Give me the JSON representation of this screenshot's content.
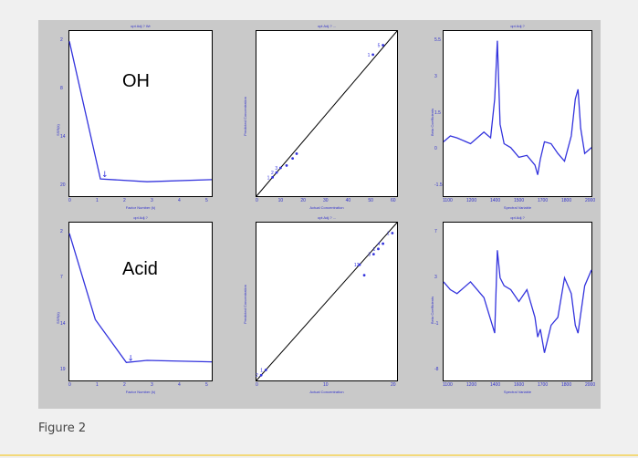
{
  "figure": {
    "caption": "Figure 2",
    "colors": {
      "frame": "#c9c9c9",
      "curve": "#3333dd",
      "axis_text": "#3333cc",
      "fit_line": "#000000"
    }
  },
  "chart_data": [
    {
      "id": "oh-ssr",
      "type": "line",
      "row_label": "OH",
      "title": "opt Adj.? Wr",
      "xlabel": "Factor Number (k)",
      "ylabel": "SSR(k)",
      "xlim": [
        0,
        5.5
      ],
      "ylim": [
        0,
        24
      ],
      "x_ticks": [
        "0",
        "1",
        "2",
        "3",
        "4",
        "5"
      ],
      "y_ticks": [
        "2",
        "8",
        "14",
        "20"
      ],
      "series": [
        {
          "x": [
            0,
            1.2,
            3,
            5.5
          ],
          "y": [
            22.5,
            2.5,
            2.1,
            2.4
          ]
        }
      ],
      "marker": {
        "x": 1.2,
        "label": "↓"
      }
    },
    {
      "id": "oh-fit",
      "type": "scatter",
      "title": "opt Adj.? ...",
      "xlabel": "Actual Concentration",
      "ylabel": "Predicted Concentration",
      "xlim": [
        0,
        70
      ],
      "ylim": [
        0,
        70
      ],
      "x_ticks": [
        "0",
        "10",
        "20",
        "30",
        "40",
        "50",
        "60"
      ],
      "y_ticks": [],
      "points": [
        [
          8,
          8
        ],
        [
          10,
          10
        ],
        [
          12,
          12
        ],
        [
          15,
          13
        ],
        [
          18,
          16
        ],
        [
          20,
          18
        ],
        [
          58,
          60
        ],
        [
          63,
          64
        ]
      ],
      "point_labels": [
        "1",
        "2",
        "3",
        "",
        "",
        "",
        "1",
        "5"
      ],
      "fit_line": [
        [
          0,
          0
        ],
        [
          70,
          70
        ]
      ]
    },
    {
      "id": "oh-coef",
      "type": "line",
      "title": "opt Adj.?",
      "xlabel": "Spectral Variable",
      "ylabel": "Beta Coefficients",
      "xlim": [
        1000,
        2100
      ],
      "ylim": [
        -2.5,
        6
      ],
      "x_ticks": [
        "1100",
        "1200",
        "1400",
        "1500",
        "1700",
        "1800",
        "2000"
      ],
      "y_ticks": [
        "5.5",
        "3",
        "1.5",
        "0",
        "-1.5"
      ],
      "series": [
        {
          "x": [
            1000,
            1050,
            1100,
            1200,
            1300,
            1350,
            1380,
            1400,
            1420,
            1450,
            1500,
            1560,
            1620,
            1680,
            1700,
            1720,
            1750,
            1800,
            1850,
            1900,
            1950,
            1980,
            2000,
            2020,
            2050,
            2100
          ],
          "y": [
            0.3,
            0.6,
            0.5,
            0.2,
            0.8,
            0.5,
            2.5,
            5.5,
            1.2,
            0.2,
            0.0,
            -0.5,
            -0.4,
            -0.9,
            -1.4,
            -0.6,
            0.3,
            0.2,
            -0.3,
            -0.7,
            0.6,
            2.5,
            3.0,
            1.0,
            -0.3,
            0.0
          ]
        }
      ]
    },
    {
      "id": "acid-ssr",
      "type": "line",
      "row_label": "Acid",
      "title": "opt Adj.?",
      "xlabel": "Factor Number (k)",
      "ylabel": "SSR(k)",
      "xlim": [
        0,
        5.5
      ],
      "ylim": [
        0,
        22
      ],
      "x_ticks": [
        "0",
        "1",
        "2",
        "3",
        "4",
        "5"
      ],
      "y_ticks": [
        "2",
        "7",
        "14",
        "19"
      ],
      "series": [
        {
          "x": [
            0,
            1,
            2.2,
            3,
            5.5
          ],
          "y": [
            20.5,
            8.5,
            2.5,
            2.8,
            2.6
          ]
        }
      ],
      "marker": {
        "x": 2.2,
        "label": "↓"
      }
    },
    {
      "id": "acid-fit",
      "type": "scatter",
      "title": "opt Adj.? ...",
      "xlabel": "Actual Concentration",
      "ylabel": "Predicted Concentration",
      "xlim": [
        0,
        30
      ],
      "ylim": [
        0,
        30
      ],
      "x_ticks": [
        "0",
        "10",
        "20"
      ],
      "y_ticks": [],
      "points": [
        [
          1,
          1
        ],
        [
          2,
          2
        ],
        [
          22,
          22
        ],
        [
          23,
          20
        ],
        [
          25,
          24
        ],
        [
          26,
          25
        ],
        [
          27,
          26
        ],
        [
          29,
          28
        ]
      ],
      "point_labels": [
        "2",
        "1",
        "12",
        "",
        "3",
        "1",
        "4",
        "1"
      ],
      "fit_line": [
        [
          0,
          0
        ],
        [
          30,
          30
        ]
      ]
    },
    {
      "id": "acid-coef",
      "type": "line",
      "title": "opt Adj.?",
      "xlabel": "Spectral Variable",
      "ylabel": "Beta Coefficients",
      "xlim": [
        1000,
        2100
      ],
      "ylim": [
        -10,
        10
      ],
      "x_ticks": [
        "1100",
        "1200",
        "1400",
        "1600",
        "1700",
        "1800",
        "2000"
      ],
      "y_ticks": [
        "7",
        "3",
        "-1",
        "-8"
      ],
      "series": [
        {
          "x": [
            1000,
            1050,
            1100,
            1200,
            1300,
            1380,
            1400,
            1420,
            1450,
            1500,
            1560,
            1620,
            1680,
            1700,
            1720,
            1750,
            1800,
            1850,
            1900,
            1950,
            1980,
            2000,
            2050,
            2100
          ],
          "y": [
            2.5,
            1.5,
            1.0,
            2.5,
            0.5,
            -4.0,
            6.5,
            3.0,
            2.0,
            1.5,
            0.0,
            1.5,
            -2.0,
            -4.5,
            -3.5,
            -6.5,
            -3.0,
            -2.0,
            3.0,
            1.0,
            -3.0,
            -4.0,
            2.0,
            4.0
          ]
        }
      ]
    }
  ]
}
